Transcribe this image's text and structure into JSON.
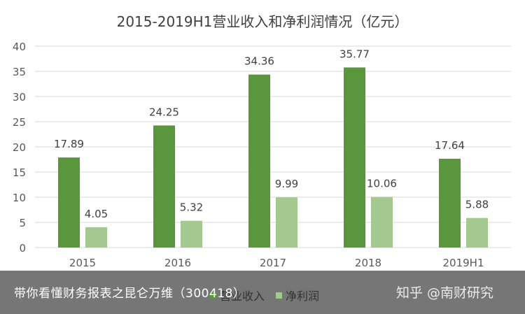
{
  "chart_data": {
    "type": "bar",
    "title": "2015-2019H1营业收入和净利润情况（亿元）",
    "categories": [
      "2015",
      "2016",
      "2017",
      "2018",
      "2019H1"
    ],
    "ylim": [
      0,
      40
    ],
    "yticks": [
      0,
      5,
      10,
      15,
      20,
      25,
      30,
      35,
      40
    ],
    "grid": true,
    "legend_placement": "bottom",
    "series": [
      {
        "name": "营业收入",
        "values": [
          17.89,
          24.25,
          34.36,
          35.77,
          17.64
        ],
        "labels": [
          "17.89",
          "24.25",
          "34.36",
          "35.77",
          "17.64"
        ],
        "color": "#5a963b"
      },
      {
        "name": "净利润",
        "values": [
          4.05,
          5.32,
          9.99,
          10.06,
          5.88
        ],
        "labels": [
          "4.05",
          "5.32",
          "9.99",
          "10.06",
          "5.88"
        ],
        "color": "#a4c990"
      }
    ]
  },
  "overlay": {
    "caption": "带你看懂财务报表之昆仑万维（300418）",
    "watermark": "知乎 @南财研究"
  }
}
